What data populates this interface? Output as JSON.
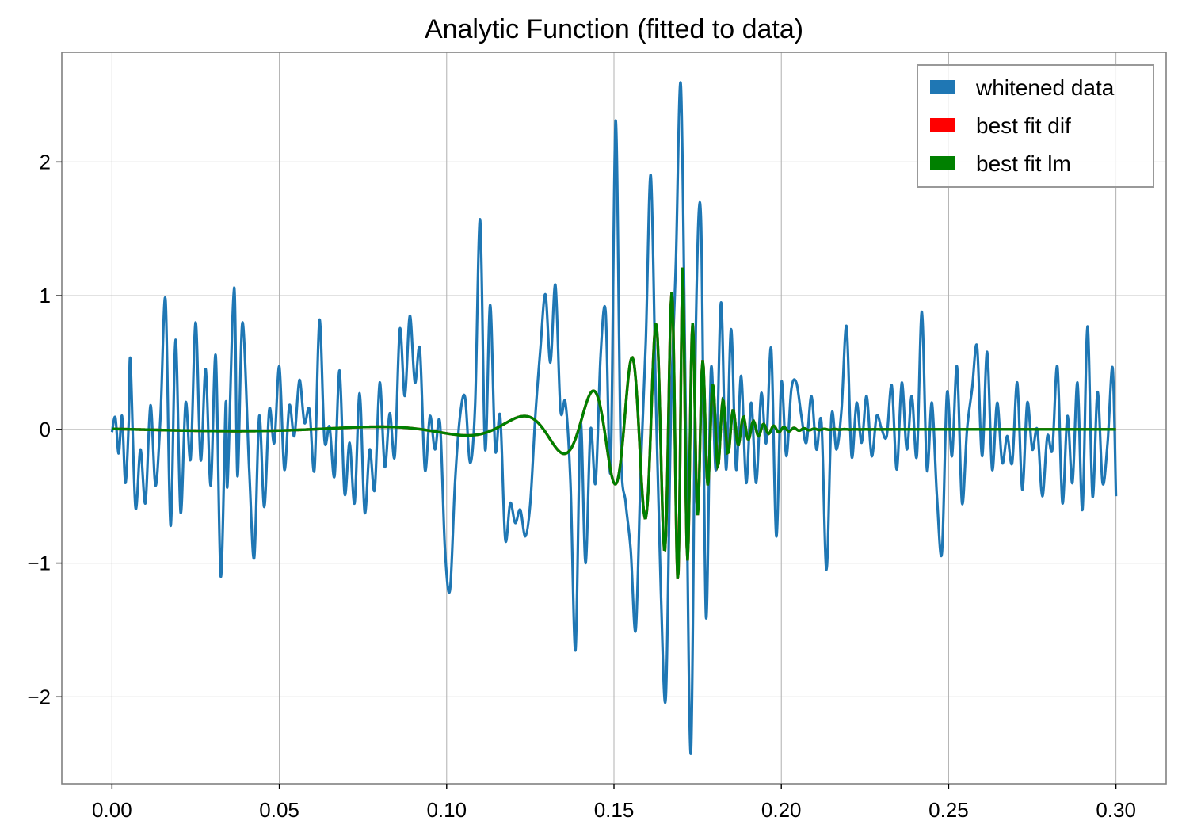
{
  "chart_data": {
    "type": "line",
    "title": "Analytic Function (fitted to data)",
    "xlabel": "",
    "ylabel": "",
    "xlim": [
      -0.015,
      0.315
    ],
    "ylim": [
      -2.65,
      2.82
    ],
    "x_ticks": [
      0.0,
      0.05,
      0.1,
      0.15,
      0.2,
      0.25,
      0.3
    ],
    "x_tick_labels": [
      "0.00",
      "0.05",
      "0.10",
      "0.15",
      "0.20",
      "0.25",
      "0.30"
    ],
    "y_ticks": [
      -2,
      -1,
      0,
      1,
      2
    ],
    "y_tick_labels": [
      "−2",
      "−1",
      "0",
      "1",
      "2"
    ],
    "grid": true,
    "legend_position": "top-right",
    "series": [
      {
        "name": "whitened data",
        "color": "#1f77b4",
        "points": [
          [
            0.0,
            -0.02
          ],
          [
            0.001,
            0.09
          ],
          [
            0.002,
            -0.18
          ],
          [
            0.003,
            0.1
          ],
          [
            0.004,
            -0.4
          ],
          [
            0.005,
            0.05
          ],
          [
            0.0055,
            0.52
          ],
          [
            0.007,
            -0.58
          ],
          [
            0.0085,
            -0.15
          ],
          [
            0.01,
            -0.55
          ],
          [
            0.0115,
            0.18
          ],
          [
            0.013,
            -0.42
          ],
          [
            0.0145,
            0.1
          ],
          [
            0.016,
            0.97
          ],
          [
            0.0175,
            -0.72
          ],
          [
            0.019,
            0.67
          ],
          [
            0.0205,
            -0.62
          ],
          [
            0.022,
            0.2
          ],
          [
            0.0235,
            -0.22
          ],
          [
            0.025,
            0.8
          ],
          [
            0.0265,
            -0.23
          ],
          [
            0.028,
            0.45
          ],
          [
            0.0295,
            -0.42
          ],
          [
            0.031,
            0.55
          ],
          [
            0.0325,
            -1.1
          ],
          [
            0.034,
            0.2
          ],
          [
            0.0345,
            -0.42
          ],
          [
            0.0365,
            1.06
          ],
          [
            0.0375,
            -0.35
          ],
          [
            0.039,
            0.8
          ],
          [
            0.041,
            -0.3
          ],
          [
            0.0425,
            -0.96
          ],
          [
            0.044,
            0.1
          ],
          [
            0.0455,
            -0.58
          ],
          [
            0.047,
            0.15
          ],
          [
            0.0485,
            -0.1
          ],
          [
            0.05,
            0.47
          ],
          [
            0.0515,
            -0.3
          ],
          [
            0.053,
            0.18
          ],
          [
            0.0545,
            -0.05
          ],
          [
            0.056,
            0.37
          ],
          [
            0.0575,
            0.05
          ],
          [
            0.059,
            0.15
          ],
          [
            0.0605,
            -0.3
          ],
          [
            0.062,
            0.82
          ],
          [
            0.0635,
            -0.08
          ],
          [
            0.065,
            0.02
          ],
          [
            0.0665,
            -0.35
          ],
          [
            0.068,
            0.44
          ],
          [
            0.0695,
            -0.48
          ],
          [
            0.071,
            -0.1
          ],
          [
            0.0725,
            -0.55
          ],
          [
            0.074,
            0.27
          ],
          [
            0.0755,
            -0.62
          ],
          [
            0.077,
            -0.15
          ],
          [
            0.0785,
            -0.45
          ],
          [
            0.08,
            0.35
          ],
          [
            0.0815,
            -0.28
          ],
          [
            0.083,
            0.12
          ],
          [
            0.0845,
            -0.2
          ],
          [
            0.086,
            0.75
          ],
          [
            0.0875,
            0.25
          ],
          [
            0.089,
            0.85
          ],
          [
            0.0905,
            0.35
          ],
          [
            0.092,
            0.6
          ],
          [
            0.0935,
            -0.3
          ],
          [
            0.095,
            0.1
          ],
          [
            0.0965,
            -0.15
          ],
          [
            0.098,
            0.05
          ],
          [
            0.0995,
            -0.9
          ],
          [
            0.101,
            -1.2
          ],
          [
            0.1025,
            -0.4
          ],
          [
            0.104,
            0.1
          ],
          [
            0.1055,
            0.24
          ],
          [
            0.107,
            -0.25
          ],
          [
            0.1085,
            0.18
          ],
          [
            0.11,
            1.57
          ],
          [
            0.1115,
            -0.15
          ],
          [
            0.113,
            0.93
          ],
          [
            0.1145,
            -0.15
          ],
          [
            0.116,
            0.1
          ],
          [
            0.1175,
            -0.82
          ],
          [
            0.119,
            -0.55
          ],
          [
            0.1205,
            -0.7
          ],
          [
            0.122,
            -0.6
          ],
          [
            0.1235,
            -0.8
          ],
          [
            0.125,
            -0.55
          ],
          [
            0.1265,
            0.1
          ],
          [
            0.128,
            0.6
          ],
          [
            0.1295,
            1.01
          ],
          [
            0.131,
            0.5
          ],
          [
            0.1325,
            1.08
          ],
          [
            0.134,
            0.15
          ],
          [
            0.1355,
            0.2
          ],
          [
            0.137,
            -0.4
          ],
          [
            0.1385,
            -1.65
          ],
          [
            0.14,
            0.05
          ],
          [
            0.1415,
            -1.0
          ],
          [
            0.143,
            0.0
          ],
          [
            0.1445,
            -0.4
          ],
          [
            0.146,
            0.55
          ],
          [
            0.1475,
            0.88
          ],
          [
            0.149,
            -0.3
          ],
          [
            0.1505,
            2.31
          ],
          [
            0.152,
            -0.1
          ],
          [
            0.1535,
            -0.55
          ],
          [
            0.155,
            -0.9
          ],
          [
            0.1565,
            -1.5
          ],
          [
            0.158,
            -0.3
          ],
          [
            0.1595,
            0.65
          ],
          [
            0.161,
            1.9
          ],
          [
            0.1625,
            0.25
          ],
          [
            0.164,
            -1.2
          ],
          [
            0.1655,
            -2.0
          ],
          [
            0.167,
            0.1
          ],
          [
            0.1685,
            1.25
          ],
          [
            0.17,
            2.57
          ],
          [
            0.1715,
            0.0
          ],
          [
            0.173,
            -2.42
          ],
          [
            0.1745,
            0.8
          ],
          [
            0.176,
            1.57
          ],
          [
            0.1775,
            -1.4
          ],
          [
            0.179,
            0.45
          ],
          [
            0.1805,
            -0.3
          ],
          [
            0.182,
            0.95
          ],
          [
            0.1835,
            -0.3
          ],
          [
            0.185,
            0.75
          ],
          [
            0.1865,
            -0.3
          ],
          [
            0.188,
            0.4
          ],
          [
            0.1895,
            -0.4
          ],
          [
            0.191,
            0.2
          ],
          [
            0.1925,
            -0.4
          ],
          [
            0.194,
            0.27
          ],
          [
            0.1955,
            -0.1
          ],
          [
            0.197,
            0.6
          ],
          [
            0.1985,
            -0.8
          ],
          [
            0.2,
            0.35
          ],
          [
            0.2015,
            -0.2
          ],
          [
            0.203,
            0.3
          ],
          [
            0.2045,
            0.35
          ],
          [
            0.206,
            0.1
          ],
          [
            0.2075,
            -0.1
          ],
          [
            0.209,
            0.25
          ],
          [
            0.2105,
            -0.15
          ],
          [
            0.212,
            0.05
          ],
          [
            0.2135,
            -1.05
          ],
          [
            0.215,
            0.1
          ],
          [
            0.2165,
            -0.15
          ],
          [
            0.218,
            0.15
          ],
          [
            0.2195,
            0.77
          ],
          [
            0.221,
            -0.2
          ],
          [
            0.2225,
            0.2
          ],
          [
            0.224,
            -0.1
          ],
          [
            0.2255,
            0.25
          ],
          [
            0.227,
            -0.2
          ],
          [
            0.2285,
            0.1
          ],
          [
            0.23,
            0.0
          ],
          [
            0.2315,
            -0.05
          ],
          [
            0.233,
            0.33
          ],
          [
            0.2345,
            -0.3
          ],
          [
            0.236,
            0.35
          ],
          [
            0.2375,
            -0.15
          ],
          [
            0.239,
            0.25
          ],
          [
            0.2405,
            -0.2
          ],
          [
            0.242,
            0.88
          ],
          [
            0.2435,
            -0.3
          ],
          [
            0.245,
            0.2
          ],
          [
            0.2465,
            -0.5
          ],
          [
            0.248,
            -0.92
          ],
          [
            0.2495,
            0.27
          ],
          [
            0.251,
            -0.2
          ],
          [
            0.2525,
            0.47
          ],
          [
            0.254,
            -0.55
          ],
          [
            0.2555,
            0.0
          ],
          [
            0.257,
            0.3
          ],
          [
            0.2585,
            0.62
          ],
          [
            0.26,
            -0.2
          ],
          [
            0.2615,
            0.58
          ],
          [
            0.263,
            -0.3
          ],
          [
            0.2645,
            0.2
          ],
          [
            0.266,
            -0.25
          ],
          [
            0.2675,
            -0.05
          ],
          [
            0.269,
            -0.25
          ],
          [
            0.2705,
            0.35
          ],
          [
            0.272,
            -0.45
          ],
          [
            0.2735,
            0.2
          ],
          [
            0.275,
            -0.15
          ],
          [
            0.2765,
            0.0
          ],
          [
            0.278,
            -0.5
          ],
          [
            0.2795,
            -0.05
          ],
          [
            0.281,
            -0.15
          ],
          [
            0.2825,
            0.47
          ],
          [
            0.284,
            -0.55
          ],
          [
            0.2855,
            0.1
          ],
          [
            0.287,
            -0.4
          ],
          [
            0.2885,
            0.35
          ],
          [
            0.29,
            -0.6
          ],
          [
            0.2915,
            0.77
          ],
          [
            0.293,
            -0.5
          ],
          [
            0.2945,
            0.28
          ],
          [
            0.296,
            -0.4
          ],
          [
            0.2975,
            -0.1
          ],
          [
            0.299,
            0.46
          ],
          [
            0.3,
            -0.5
          ]
        ]
      },
      {
        "name": "best fit dif",
        "color": "#ff0000",
        "points": []
      },
      {
        "name": "best fit lm",
        "color": "#008000",
        "points": []
      }
    ],
    "fit_model": {
      "description_values": "damped chirp ringdown peaking near x=0.170",
      "peak_time": 0.1705,
      "amplitude": 1.21
    }
  }
}
